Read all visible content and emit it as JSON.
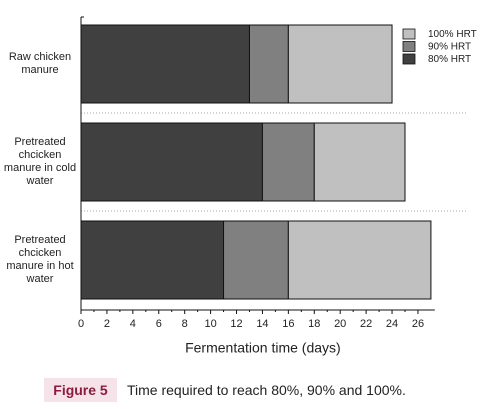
{
  "chart_data": {
    "type": "bar",
    "orientation": "horizontal",
    "stacked": true,
    "categories": [
      "Raw chicken manure",
      "Pretreated chcicken manure in cold water",
      "Pretreated chcicken manure in hot water"
    ],
    "series": [
      {
        "name": "80% HRT",
        "color": "#404040",
        "values": [
          13,
          14,
          11
        ]
      },
      {
        "name": "90% HRT",
        "color": "#7f807f",
        "values": [
          3,
          4,
          5
        ]
      },
      {
        "name": "100% HRT",
        "color": "#c0c0c0",
        "values": [
          8,
          7,
          11
        ]
      }
    ],
    "xlim": [
      0,
      27.3
    ],
    "xticks": [
      0,
      2,
      4,
      6,
      8,
      10,
      12,
      14,
      16,
      18,
      20,
      22,
      24,
      26
    ],
    "xlabel": "Fermentation time (days)",
    "legend": "top-right"
  },
  "caption": {
    "label": "Figure 5",
    "text": "Time required to reach 80%, 90% and 100%."
  }
}
